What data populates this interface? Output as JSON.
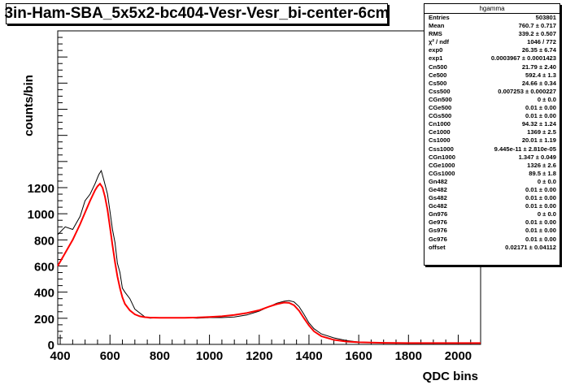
{
  "title": "3in-Ham-SBA_5x5x2-bc404-Vesr-Vesr_bi-center-6cm",
  "colors": {
    "data": "#000000",
    "fit": "#ff0000",
    "background": "#ffffff"
  },
  "stats": {
    "name": "hgamma",
    "rows": [
      {
        "label": "Entries",
        "value": "503801"
      },
      {
        "label": "Mean",
        "value": "760.7  ±  0.717"
      },
      {
        "label": "RMS",
        "value": "339.2  ±  0.507"
      },
      {
        "label": "χ² / ndf",
        "value": "1046 / 772"
      },
      {
        "label": "exp0",
        "value": "26.35  ±  6.74"
      },
      {
        "label": "exp1",
        "value": "0.0003967  ± 0.0001423"
      },
      {
        "label": "Cn500",
        "value": "21.79  ±  2.40"
      },
      {
        "label": "Ce500",
        "value": "592.4  ±  1.3"
      },
      {
        "label": "Cs500",
        "value": "24.66  ±  0.34"
      },
      {
        "label": "Css500",
        "value": "0.007253  ± 0.000227"
      },
      {
        "label": "CGn500",
        "value": "0  ±  0.0"
      },
      {
        "label": "CGe500",
        "value": "0.01  ±  0.00"
      },
      {
        "label": "CGs500",
        "value": "0.01  ±  0.00"
      },
      {
        "label": "Cn1000",
        "value": "94.32  ±  1.24"
      },
      {
        "label": "Ce1000",
        "value": "1369  ±  2.5"
      },
      {
        "label": "Cs1000",
        "value": "20.01  ±  1.19"
      },
      {
        "label": "Css1000",
        "value": "9.445e-11  ± 2.810e-05"
      },
      {
        "label": "CGn1000",
        "value": "1.347  ±  0.049"
      },
      {
        "label": "CGe1000",
        "value": "1326  ±  2.6"
      },
      {
        "label": "CGs1000",
        "value": "89.5  ±  1.8"
      },
      {
        "label": "Gn482",
        "value": "0  ±  0.0"
      },
      {
        "label": "Ge482",
        "value": "0.01  ±  0.00"
      },
      {
        "label": "Gs482",
        "value": "0.01  ±  0.00"
      },
      {
        "label": "Gc482",
        "value": "0.01  ±  0.00"
      },
      {
        "label": "Gn976",
        "value": "0  ±  0.0"
      },
      {
        "label": "Ge976",
        "value": "0.01  ±  0.00"
      },
      {
        "label": "Gs976",
        "value": "0.01  ±  0.00"
      },
      {
        "label": "Gc976",
        "value": "0.01  ±  0.00"
      },
      {
        "label": "offset",
        "value": "0.02171  ± 0.04112"
      }
    ]
  },
  "chart_data": {
    "type": "line",
    "title": "3in-Ham-SBA_5x5x2-bc404-Vesr-Vesr_bi-center-6cm",
    "xlabel": "QDC bins",
    "ylabel": "counts/bin",
    "xlim": [
      390,
      2090
    ],
    "ylim": [
      0,
      2400
    ],
    "xticks": [
      400,
      600,
      800,
      1000,
      1200,
      1400,
      1600,
      1800,
      2000
    ],
    "yticks": [
      0,
      200,
      400,
      600,
      800,
      1000,
      1200
    ],
    "grid": false,
    "series": [
      {
        "role": "data histogram",
        "x": [
          390,
          420,
          450,
          480,
          500,
          520,
          540,
          555,
          565,
          575,
          590,
          600,
          610,
          620,
          630,
          640,
          650,
          660,
          680,
          700,
          720,
          740,
          760,
          800,
          850,
          900,
          950,
          1000,
          1050,
          1100,
          1150,
          1200,
          1240,
          1270,
          1300,
          1320,
          1340,
          1360,
          1380,
          1400,
          1420,
          1450,
          1500,
          1550,
          1600,
          1700,
          1800,
          1900,
          2000,
          2090
        ],
        "y": [
          840,
          900,
          880,
          980,
          1100,
          1150,
          1230,
          1300,
          1330,
          1260,
          1150,
          1020,
          880,
          780,
          620,
          550,
          430,
          400,
          350,
          270,
          240,
          210,
          200,
          205,
          205,
          205,
          200,
          205,
          205,
          210,
          225,
          255,
          290,
          315,
          330,
          335,
          325,
          290,
          230,
          165,
          120,
          80,
          50,
          30,
          18,
          12,
          10,
          10,
          10,
          10
        ]
      },
      {
        "role": "fit",
        "x": [
          390,
          420,
          450,
          480,
          500,
          520,
          540,
          550,
          560,
          570,
          580,
          590,
          600,
          610,
          620,
          630,
          640,
          650,
          660,
          680,
          700,
          720,
          740,
          760,
          800,
          850,
          900,
          950,
          1000,
          1050,
          1100,
          1150,
          1200,
          1240,
          1270,
          1300,
          1320,
          1340,
          1360,
          1380,
          1400,
          1420,
          1450,
          1500,
          1550,
          1600,
          1700,
          1800,
          1900,
          2000,
          2090
        ],
        "y": [
          600,
          700,
          800,
          920,
          1010,
          1100,
          1180,
          1210,
          1230,
          1200,
          1130,
          1030,
          900,
          760,
          630,
          520,
          430,
          360,
          310,
          260,
          230,
          215,
          208,
          205,
          204,
          204,
          204,
          206,
          210,
          215,
          225,
          240,
          262,
          290,
          308,
          320,
          318,
          300,
          258,
          200,
          145,
          100,
          62,
          35,
          22,
          16,
          12,
          10,
          10,
          10,
          10
        ]
      }
    ]
  }
}
